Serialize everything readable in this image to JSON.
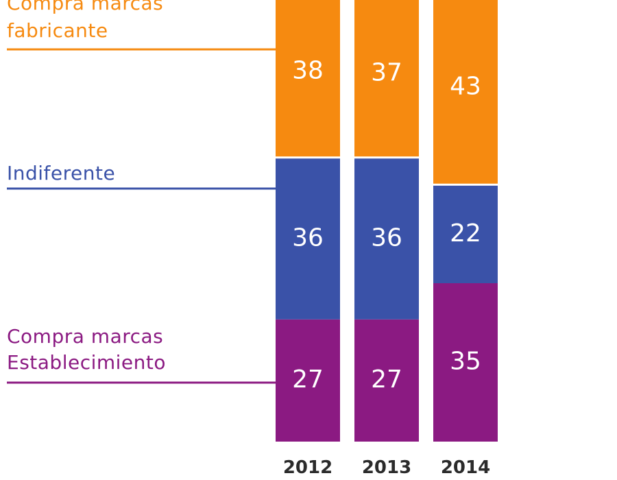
{
  "chart_data": {
    "type": "bar",
    "stacked": true,
    "categories": [
      "2012",
      "2013",
      "2014"
    ],
    "series": [
      {
        "name": "Compra marcas Establecimiento",
        "label_lines": [
          "Compra marcas",
          "Establecimiento"
        ],
        "color": "#8b1a82",
        "values": [
          27,
          27,
          35
        ]
      },
      {
        "name": "Indiferente",
        "label_lines": [
          "Indiferente"
        ],
        "color": "#3a52a8",
        "values": [
          36,
          36,
          22
        ]
      },
      {
        "name": "Compra marcas fabricante",
        "label_lines": [
          "Compra marcas",
          "fabricante"
        ],
        "color": "#f68a10",
        "values": [
          38,
          37,
          43
        ]
      }
    ],
    "ylim": [
      0,
      100
    ],
    "grid": false,
    "legend": "left, inline labels with leader lines"
  }
}
